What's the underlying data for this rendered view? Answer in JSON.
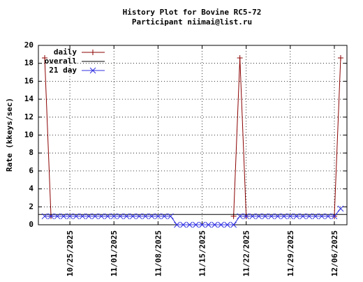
{
  "chart_data": {
    "type": "line",
    "title": "History Plot for Bovine RC5-72",
    "subtitle": "Participant niimai@list.ru",
    "y_label": "Rate (kkeys/sec)",
    "xlim": [
      "2025-10-20",
      "2025-12-08"
    ],
    "xticks": [
      {
        "value": "2025-10-25",
        "label": "10/25/2025"
      },
      {
        "value": "2025-11-01",
        "label": "11/01/2025"
      },
      {
        "value": "2025-11-08",
        "label": "11/08/2025"
      },
      {
        "value": "2025-11-15",
        "label": "11/15/2025"
      },
      {
        "value": "2025-11-22",
        "label": "11/22/2025"
      },
      {
        "value": "2025-11-29",
        "label": "11/29/2025"
      },
      {
        "value": "2025-12-06",
        "label": "12/06/2025"
      }
    ],
    "ylim": [
      0,
      20
    ],
    "yticks": [
      0,
      2,
      4,
      6,
      8,
      10,
      12,
      14,
      16,
      18,
      20
    ],
    "grid": true,
    "legend": "top-left",
    "series": [
      {
        "name": "daily",
        "color": "#8b0000",
        "marker": "plus",
        "x": [
          "2025-10-21",
          "2025-10-22",
          null,
          "2025-11-20",
          "2025-11-21",
          "2025-11-22",
          null,
          "2025-12-06",
          "2025-12-07"
        ],
        "values": [
          18.6,
          0.95,
          null,
          0.95,
          18.6,
          0.95,
          null,
          0.95,
          18.6
        ]
      },
      {
        "name": "overall",
        "color": "#000000",
        "marker": "none",
        "x": [
          "2025-10-20",
          "2025-12-08"
        ],
        "values": [
          1.15,
          1.15
        ]
      },
      {
        "name": "21 day",
        "color": "#3030e0",
        "marker": "cross",
        "x": [
          "2025-10-21",
          "2025-10-22",
          "2025-10-23",
          "2025-10-24",
          "2025-10-25",
          "2025-10-26",
          "2025-10-27",
          "2025-10-28",
          "2025-10-29",
          "2025-10-30",
          "2025-10-31",
          "2025-11-01",
          "2025-11-02",
          "2025-11-03",
          "2025-11-04",
          "2025-11-05",
          "2025-11-06",
          "2025-11-07",
          "2025-11-08",
          "2025-11-09",
          "2025-11-10",
          "2025-11-11",
          "2025-11-12",
          "2025-11-13",
          "2025-11-14",
          "2025-11-15",
          "2025-11-16",
          "2025-11-17",
          "2025-11-18",
          "2025-11-19",
          "2025-11-20",
          "2025-11-21",
          "2025-11-22",
          "2025-11-23",
          "2025-11-24",
          "2025-11-25",
          "2025-11-26",
          "2025-11-27",
          "2025-11-28",
          "2025-11-29",
          "2025-11-30",
          "2025-12-01",
          "2025-12-02",
          "2025-12-03",
          "2025-12-04",
          "2025-12-05",
          "2025-12-06",
          "2025-12-07"
        ],
        "values": [
          0.95,
          0.95,
          0.95,
          0.95,
          0.95,
          0.95,
          0.95,
          0.95,
          0.95,
          0.95,
          0.95,
          0.95,
          0.95,
          0.95,
          0.95,
          0.95,
          0.95,
          0.95,
          0.95,
          0.95,
          0.95,
          0,
          0,
          0,
          0,
          0,
          0,
          0,
          0,
          0,
          0,
          0.95,
          0.95,
          0.95,
          0.95,
          0.95,
          0.95,
          0.95,
          0.95,
          0.95,
          0.95,
          0.95,
          0.95,
          0.95,
          0.95,
          0.95,
          0.95,
          1.8
        ]
      }
    ]
  }
}
